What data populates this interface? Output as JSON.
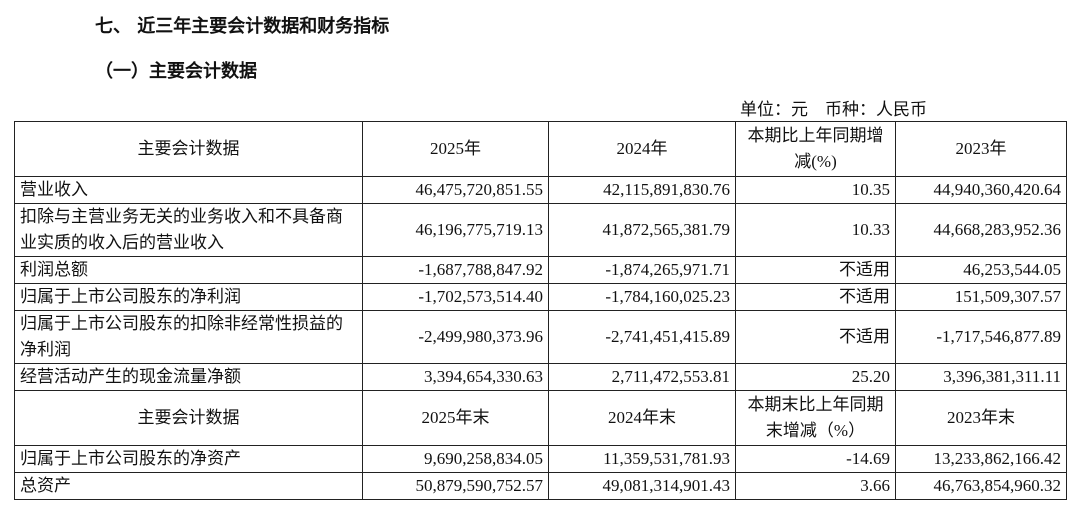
{
  "section_title": "七、 近三年主要会计数据和财务指标",
  "subsection_title": "（一）主要会计数据",
  "unit_note": "单位：元　币种：人民币",
  "table": {
    "header": [
      "主要会计数据",
      "2025年",
      "2024年",
      "本期比上年同期增减(%)",
      "2023年"
    ],
    "rows": [
      [
        "营业收入",
        "46,475,720,851.55",
        "42,115,891,830.76",
        "10.35",
        "44,940,360,420.64"
      ],
      [
        "扣除与主营业务无关的业务收入和不具备商业实质的收入后的营业收入",
        "46,196,775,719.13",
        "41,872,565,381.79",
        "10.33",
        "44,668,283,952.36"
      ],
      [
        "利润总额",
        "-1,687,788,847.92",
        "-1,874,265,971.71",
        "不适用",
        "46,253,544.05"
      ],
      [
        "归属于上市公司股东的净利润",
        "-1,702,573,514.40",
        "-1,784,160,025.23",
        "不适用",
        "151,509,307.57"
      ],
      [
        "归属于上市公司股东的扣除非经常性损益的净利润",
        "-2,499,980,373.96",
        "-2,741,451,415.89",
        "不适用",
        "-1,717,546,877.89"
      ],
      [
        "经营活动产生的现金流量净额",
        "3,394,654,330.63",
        "2,711,472,553.81",
        "25.20",
        "3,396,381,311.11"
      ]
    ],
    "header2": [
      "主要会计数据",
      "2025年末",
      "2024年末",
      "本期末比上年同期末增减（%）",
      "2023年末"
    ],
    "rows2": [
      [
        "归属于上市公司股东的净资产",
        "9,690,258,834.05",
        "11,359,531,781.93",
        "-14.69",
        "13,233,862,166.42"
      ],
      [
        "总资产",
        "50,879,590,752.57",
        "49,081,314,901.43",
        "3.66",
        "46,763,854,960.32"
      ]
    ]
  }
}
